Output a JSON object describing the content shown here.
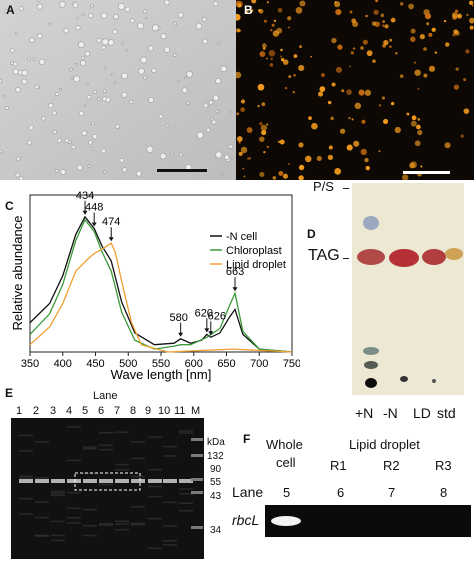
{
  "panels": {
    "a": {
      "letter": "A"
    },
    "b": {
      "letter": "B"
    },
    "c": {
      "letter": "C"
    },
    "d": {
      "letter": "D"
    },
    "e": {
      "letter": "E"
    },
    "f": {
      "letter": "F"
    }
  },
  "chart_data": {
    "type": "line",
    "xlabel": "Wave length [nm]",
    "ylabel": "Relative abundance",
    "xlim": [
      350,
      750
    ],
    "xticks": [
      350,
      400,
      450,
      500,
      550,
      600,
      650,
      700,
      750
    ],
    "legend_position": "top-right",
    "series": [
      {
        "name": "-N cell",
        "color": "#111111",
        "points": [
          [
            350,
            0.2
          ],
          [
            380,
            0.33
          ],
          [
            400,
            0.52
          ],
          [
            420,
            0.8
          ],
          [
            434,
            0.92
          ],
          [
            448,
            0.84
          ],
          [
            460,
            0.72
          ],
          [
            474,
            0.62
          ],
          [
            490,
            0.34
          ],
          [
            510,
            0.13
          ],
          [
            540,
            0.05
          ],
          [
            570,
            0.06
          ],
          [
            580,
            0.09
          ],
          [
            595,
            0.06
          ],
          [
            612,
            0.08
          ],
          [
            620,
            0.12
          ],
          [
            626,
            0.1
          ],
          [
            640,
            0.13
          ],
          [
            655,
            0.24
          ],
          [
            663,
            0.29
          ],
          [
            675,
            0.12
          ],
          [
            700,
            0.02
          ],
          [
            750,
            0.0
          ]
        ]
      },
      {
        "name": "Chloroplast",
        "color": "#3a9a3a",
        "points": [
          [
            350,
            0.12
          ],
          [
            380,
            0.26
          ],
          [
            400,
            0.46
          ],
          [
            420,
            0.76
          ],
          [
            434,
            0.9
          ],
          [
            448,
            0.82
          ],
          [
            460,
            0.68
          ],
          [
            474,
            0.55
          ],
          [
            490,
            0.27
          ],
          [
            510,
            0.08
          ],
          [
            540,
            0.02
          ],
          [
            570,
            0.04
          ],
          [
            580,
            0.05
          ],
          [
            595,
            0.05
          ],
          [
            620,
            0.1
          ],
          [
            640,
            0.16
          ],
          [
            655,
            0.32
          ],
          [
            663,
            0.4
          ],
          [
            675,
            0.14
          ],
          [
            700,
            0.02
          ],
          [
            750,
            0.0
          ]
        ]
      },
      {
        "name": "Lipid droplet",
        "color": "#f0a030",
        "points": [
          [
            350,
            0.05
          ],
          [
            380,
            0.17
          ],
          [
            400,
            0.33
          ],
          [
            420,
            0.55
          ],
          [
            440,
            0.64
          ],
          [
            448,
            0.67
          ],
          [
            460,
            0.7
          ],
          [
            474,
            0.74
          ],
          [
            480,
            0.68
          ],
          [
            490,
            0.48
          ],
          [
            505,
            0.2
          ],
          [
            520,
            0.05
          ],
          [
            560,
            0.0
          ],
          [
            660,
            0.02
          ],
          [
            750,
            0.0
          ]
        ]
      }
    ],
    "annotations": [
      "434",
      "448",
      "474",
      "580",
      "620",
      "626",
      "663"
    ]
  },
  "tlc": {
    "ps_label": "P/S",
    "tag_label": "TAG",
    "lanes": [
      "+N",
      "-N",
      "LD",
      "std"
    ]
  },
  "gel_e": {
    "lane_title": "Lane",
    "lane_numbers": [
      "1",
      "2",
      "3",
      "4",
      "5",
      "6",
      "7",
      "8",
      "9",
      "10",
      "11",
      "M"
    ],
    "kda_label": "kDa",
    "markers": [
      "132",
      "90",
      "55",
      "43",
      "34"
    ]
  },
  "gel_f": {
    "whole_cell_line1": "Whole",
    "whole_cell_line2": "cell",
    "lipid_droplet": "Lipid droplet",
    "replicates": [
      "R1",
      "R2",
      "R3"
    ],
    "lane_label": "Lane",
    "lane_numbers": [
      "5",
      "6",
      "7",
      "8"
    ],
    "gene": "rbcL"
  }
}
